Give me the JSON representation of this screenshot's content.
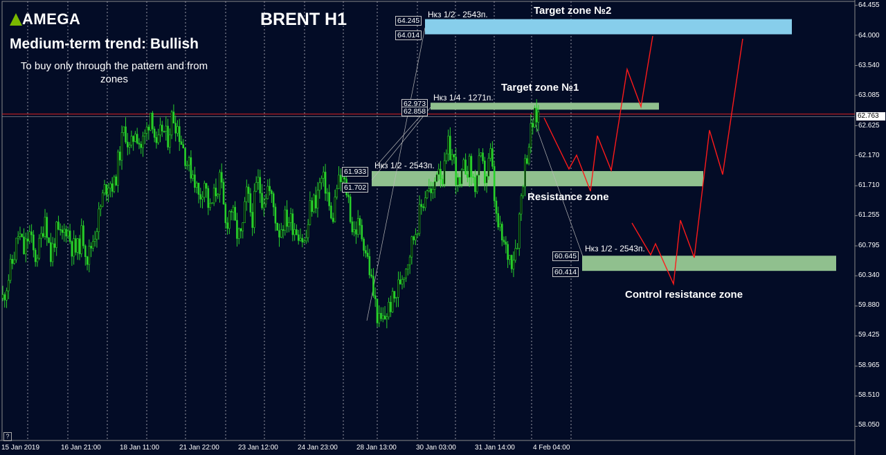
{
  "logo": {
    "text": "AMEGA",
    "accent_color": "#7ab800"
  },
  "title": "BRENT H1",
  "trend": "Medium-term trend: Bullish",
  "subtitle": "To buy only through the pattern  and from zones",
  "current_price": "62.763",
  "help_glyph": "?",
  "colors": {
    "background": "#030c26",
    "bull_candle": "#28d12a",
    "projection": "#ff1a1a",
    "zone_green": "#90c08e",
    "zone_blue": "#87ceeb",
    "price_line": "#e02020"
  },
  "chart_data": {
    "type": "candlestick",
    "title": "BRENT H1",
    "y_axis": {
      "ticks": [
        "64.455",
        "64.000",
        "63.540",
        "63.085",
        "62.625",
        "62.170",
        "61.710",
        "61.255",
        "60.795",
        "60.340",
        "59.880",
        "59.425",
        "58.965",
        "58.510",
        "58.050"
      ],
      "range": [
        57.95,
        64.55
      ]
    },
    "x_axis": {
      "ticks": [
        "15 Jan 2019",
        "16 Jan 21:00",
        "18 Jan 11:00",
        "21 Jan 22:00",
        "23 Jan 12:00",
        "24 Jan 23:00",
        "28 Jan 13:00",
        "30 Jan 03:00",
        "31 Jan 14:00",
        "4 Feb 04:00"
      ]
    },
    "grid": "vertical dotted",
    "close_path": [
      60.0,
      60.3,
      60.6,
      61.0,
      60.7,
      61.0,
      60.6,
      60.8,
      61.3,
      60.6,
      61.0,
      60.9,
      61.1,
      60.8,
      60.7,
      61.0,
      60.6,
      60.9,
      61.2,
      61.6,
      61.8,
      61.7,
      62.2,
      62.6,
      62.2,
      62.6,
      62.3,
      62.5,
      62.9,
      62.2,
      62.6,
      62.4,
      62.8,
      62.6,
      62.3,
      62.0,
      61.9,
      61.5,
      61.8,
      61.3,
      61.6,
      61.8,
      61.1,
      61.4,
      61.0,
      60.9,
      61.6,
      61.2,
      61.8,
      61.5,
      61.7,
      61.4,
      61.0,
      61.2,
      61.2,
      61.1,
      61.0,
      60.8,
      61.4,
      61.5,
      61.8,
      61.7,
      61.1,
      61.7,
      61.8,
      61.6,
      61.0,
      61.1,
      60.9,
      60.5,
      60.0,
      59.6,
      59.7,
      59.9,
      60.0,
      60.3,
      60.5,
      60.8,
      61.1,
      61.4,
      61.7,
      61.5,
      62.1,
      61.8,
      62.3,
      62.1,
      61.6,
      62.0,
      62.0,
      61.7,
      62.1,
      61.8,
      62.2,
      61.2,
      60.9,
      60.7,
      60.6,
      60.9,
      61.8,
      62.3,
      62.7,
      62.8
    ],
    "annotations": [
      "Target zone №2",
      "Target zone №1",
      "Resistance zone",
      "Control resistance zone"
    ],
    "zones": [
      {
        "label": "Target zone №2",
        "high": "64.245",
        "low": "64.014",
        "fib_note": "Нкз 1/2 - 2543п.",
        "color": "#87ceeb"
      },
      {
        "label": "Target zone №1",
        "high": "62.973",
        "low": "62.858",
        "fib_note": "Нкз 1/4 - 1271п.",
        "color": "#90c08e"
      },
      {
        "label": "Resistance zone",
        "high": "61.933",
        "low": "61.702",
        "fib_note": "Нкз 1/2 - 2543п.",
        "color": "#90c08e"
      },
      {
        "label": "Control resistance zone",
        "high": "60.645",
        "low": "60.414",
        "fib_note": "Нкз 1/2 - 2543п.",
        "color": "#90c08e"
      }
    ],
    "horizontal_line": 62.8,
    "current_price": 62.763
  }
}
